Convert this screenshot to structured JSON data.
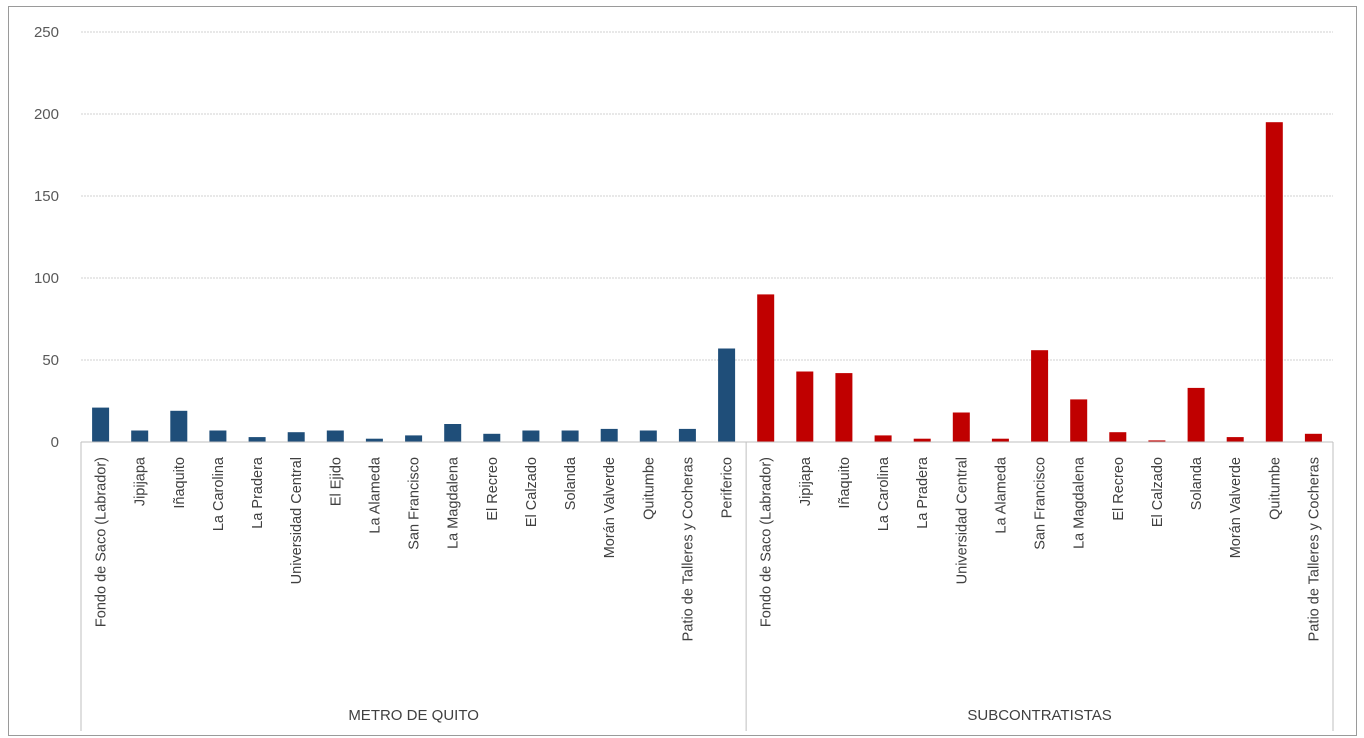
{
  "chart_data": {
    "type": "bar",
    "title": "",
    "xlabel": "",
    "ylabel": "",
    "ylim": [
      0,
      250
    ],
    "yticks": [
      0,
      50,
      100,
      150,
      200,
      250
    ],
    "grid": true,
    "legend": "none",
    "groups": [
      {
        "name": "METRO DE QUITO",
        "color": "#1f4e79",
        "categories": [
          "Fondo de Saco (Labrador)",
          "Jipijapa",
          "Iñaquito",
          "La Carolina",
          "La Pradera",
          "Universidad Central",
          "El Ejido",
          "La Alameda",
          "San Francisco",
          "La Magdalena",
          "El Recreo",
          "El Calzado",
          "Solanda",
          "Morán Valverde",
          "Quitumbe",
          "Patio de Talleres y Cocheras",
          "Periferico"
        ],
        "values": [
          21,
          7,
          19,
          7,
          3,
          6,
          7,
          2,
          4,
          11,
          5,
          7,
          7,
          8,
          7,
          8,
          57
        ]
      },
      {
        "name": "SUBCONTRATISTAS",
        "color": "#c00000",
        "categories": [
          "Fondo de Saco (Labrador)",
          "Jipijapa",
          "Iñaquito",
          "La Carolina",
          "La Pradera",
          "Universidad Central",
          "La Alameda",
          "San Francisco",
          "La Magdalena",
          "El Recreo",
          "El Calzado",
          "Solanda",
          "Morán Valverde",
          "Quitumbe",
          "Patio de Talleres y Cocheras"
        ],
        "values": [
          90,
          43,
          42,
          4,
          2,
          18,
          2,
          56,
          26,
          6,
          1,
          33,
          3,
          195,
          5
        ]
      }
    ]
  }
}
